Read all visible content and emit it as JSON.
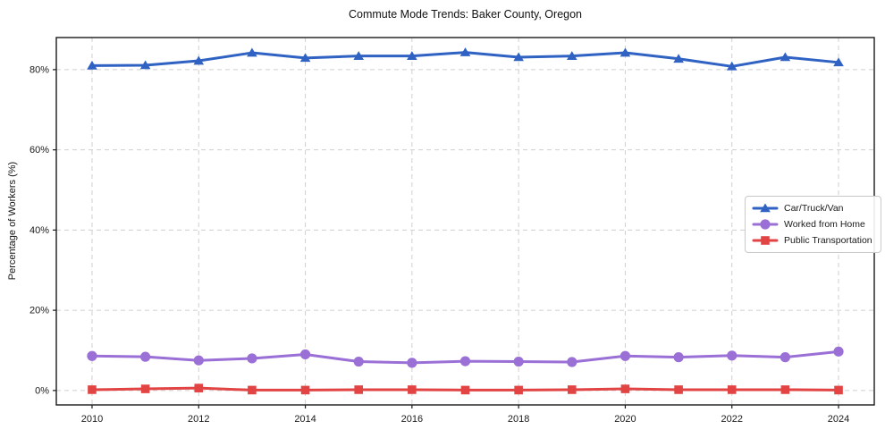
{
  "chart_data": {
    "type": "line",
    "title": "Commute Mode Trends: Baker County, Oregon",
    "xlabel": "",
    "ylabel": "Percentage of Workers (%)",
    "x": [
      2010,
      2011,
      2012,
      2013,
      2014,
      2015,
      2016,
      2017,
      2018,
      2019,
      2020,
      2021,
      2022,
      2023,
      2024
    ],
    "xtick_labels": [
      "2010",
      "2012",
      "2014",
      "2016",
      "2018",
      "2020",
      "2022",
      "2024"
    ],
    "xticks": [
      2010,
      2012,
      2014,
      2016,
      2018,
      2020,
      2022,
      2024
    ],
    "ytick_labels": [
      "0%",
      "20%",
      "40%",
      "60%",
      "80%"
    ],
    "yticks": [
      0,
      20,
      40,
      60,
      80
    ],
    "xlim": [
      2009.33,
      2024.67
    ],
    "ylim": [
      -3.6,
      88.0
    ],
    "grid": true,
    "grid_style": "dashed",
    "legend_position": "center-right",
    "series": [
      {
        "name": "Car/Truck/Van",
        "color": "#2f62c3",
        "marker": "triangle-up",
        "values": [
          81.0,
          81.1,
          82.2,
          84.2,
          82.9,
          83.4,
          83.4,
          84.3,
          83.1,
          83.4,
          84.2,
          82.7,
          80.8,
          83.1,
          81.8
        ]
      },
      {
        "name": "Worked from Home",
        "color": "#9a6fd6",
        "marker": "circle",
        "values": [
          8.6,
          8.4,
          7.5,
          8.0,
          9.0,
          7.2,
          6.9,
          7.3,
          7.2,
          7.1,
          8.6,
          8.3,
          8.7,
          8.3,
          9.7
        ]
      },
      {
        "name": "Public Transportation",
        "color": "#e24444",
        "marker": "square",
        "values": [
          0.2,
          0.4,
          0.6,
          0.1,
          0.1,
          0.2,
          0.2,
          0.1,
          0.1,
          0.2,
          0.4,
          0.2,
          0.2,
          0.2,
          0.1
        ]
      }
    ],
    "colors": {
      "grid": "#cfcfcf",
      "spine": "#1a1a1a",
      "tick_text": "#1a1a1a",
      "background": "#ffffff"
    }
  }
}
